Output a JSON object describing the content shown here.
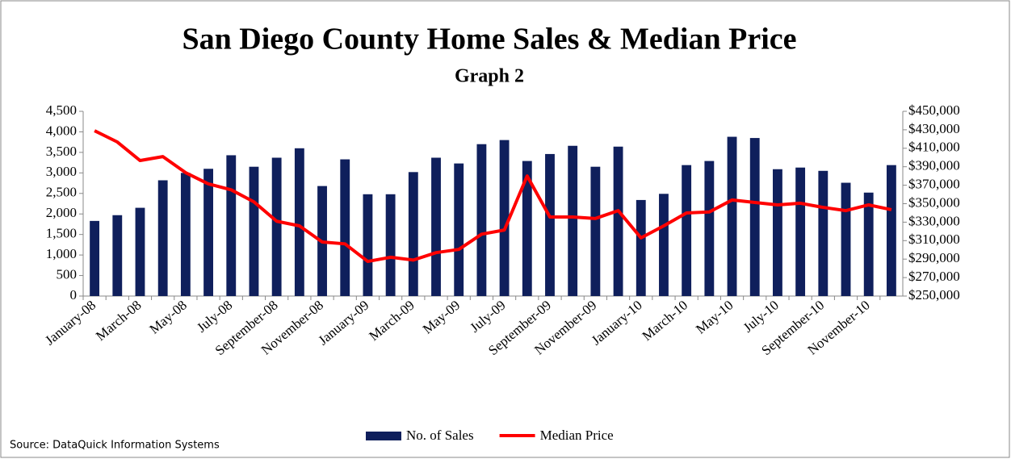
{
  "chart_data": {
    "type": "bar_line",
    "title": "San Diego County  Home Sales & Median Price",
    "subtitle": "Graph 2",
    "source": "Source: DataQuick Information Systems",
    "categories": [
      "January-08",
      null,
      "March-08",
      null,
      "May-08",
      null,
      "July-08",
      null,
      "September-08",
      null,
      "November-08",
      null,
      "January-09",
      null,
      "March-09",
      null,
      "May-09",
      null,
      "July-09",
      null,
      "September-09",
      null,
      "November-09",
      null,
      "January-10",
      null,
      "March-10",
      null,
      "May-10",
      null,
      "July-10",
      null,
      "September-10",
      null,
      "November-10",
      null
    ],
    "series": [
      {
        "name": "No. of Sales",
        "type": "bar",
        "color": "#0f1f5c",
        "values": [
          1830,
          1970,
          2150,
          2820,
          3000,
          3100,
          3430,
          3150,
          3370,
          3600,
          2680,
          3330,
          2480,
          2480,
          3020,
          3370,
          3230,
          3700,
          3800,
          3290,
          3460,
          3660,
          3150,
          3640,
          2340,
          2490,
          3190,
          3290,
          3880,
          3850,
          3090,
          3130,
          3050,
          2760,
          2520,
          3190
        ]
      },
      {
        "name": "Median Price",
        "type": "line",
        "axis": "y2",
        "color": "#ff0000",
        "values": [
          429000,
          416800,
          396700,
          401000,
          383600,
          371400,
          365000,
          352000,
          331000,
          326000,
          308500,
          306500,
          287500,
          292000,
          289000,
          297000,
          300500,
          317000,
          321500,
          380000,
          335600,
          335600,
          334000,
          342500,
          313000,
          326000,
          340000,
          341000,
          354000,
          351300,
          348700,
          350500,
          346000,
          342500,
          348700,
          343500
        ]
      }
    ],
    "ylim": [
      0,
      4500
    ],
    "yticks": [
      0,
      500,
      {
        "value": 1000,
        "label": "1,000"
      },
      {
        "value": 1500,
        "label": "1,500"
      },
      {
        "value": 2000,
        "label": "2,000"
      },
      {
        "value": 2500,
        "label": "2,500"
      },
      {
        "value": 3000,
        "label": "3,000"
      },
      {
        "value": 3500,
        "label": "3,500"
      },
      {
        "value": 4000,
        "label": "4,000"
      },
      {
        "value": 4500,
        "label": "4,500"
      }
    ],
    "y2lim": [
      250000,
      450000
    ],
    "y2ticks": [
      {
        "value": 250000,
        "label": "$250,000"
      },
      {
        "value": 270000,
        "label": "$270,000"
      },
      {
        "value": 290000,
        "label": "$290,000"
      },
      {
        "value": 310000,
        "label": "$310,000"
      },
      {
        "value": 330000,
        "label": "$330,000"
      },
      {
        "value": 350000,
        "label": "$350,000"
      },
      {
        "value": 370000,
        "label": "$370,000"
      },
      {
        "value": 390000,
        "label": "$390,000"
      },
      {
        "value": 410000,
        "label": "$410,000"
      },
      {
        "value": 430000,
        "label": "$430,000"
      },
      {
        "value": 450000,
        "label": "$450,000"
      }
    ],
    "legend": "bottom"
  }
}
